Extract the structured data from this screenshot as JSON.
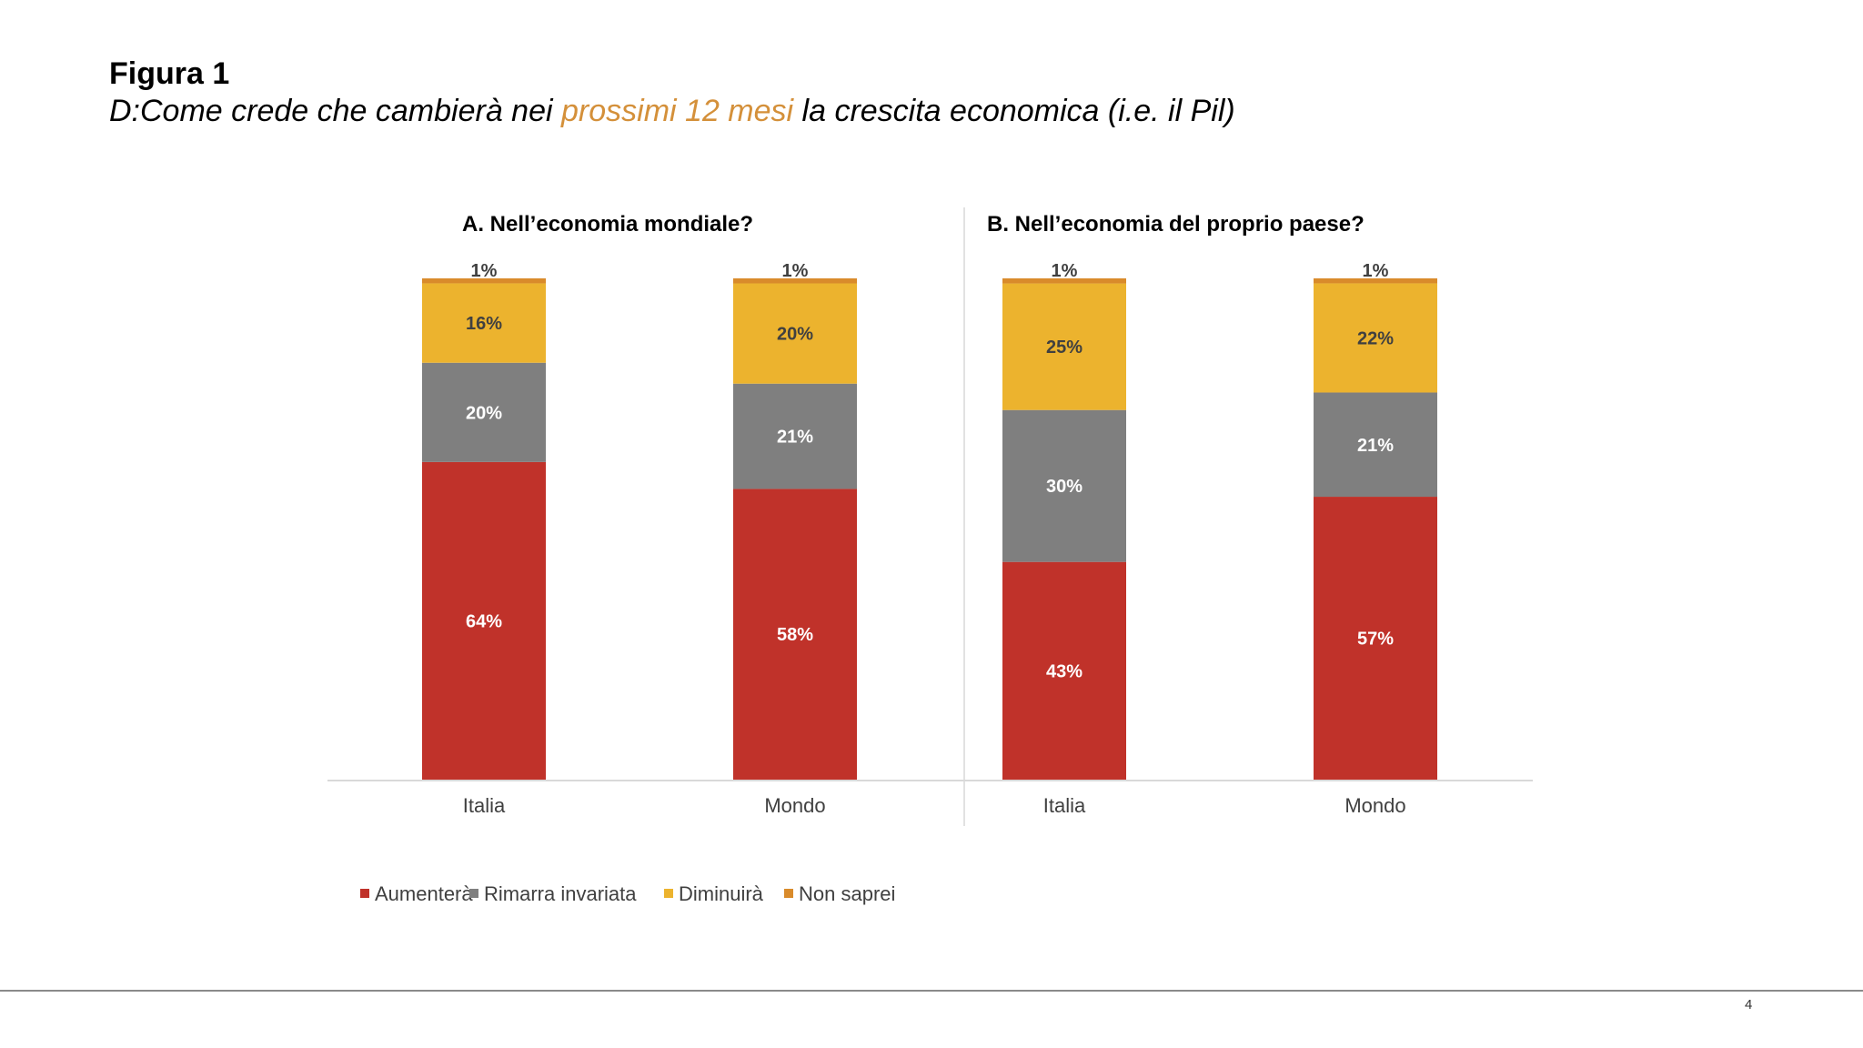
{
  "header": {
    "figure_label": "Figura 1",
    "question_prefix": "D:Come crede che cambierà nei ",
    "question_highlight": "prossimi 12 mesi",
    "question_suffix": " la crescita economica (i.e. il Pil)",
    "highlight_color": "#d4903a"
  },
  "chart_data": [
    {
      "type": "bar",
      "stacked": true,
      "title": "A. Nell’economia mondiale?",
      "categories": [
        "Italia",
        "Mondo"
      ],
      "series": [
        {
          "name": "Aumenterà",
          "color": "#c0322a",
          "values": [
            64,
            58
          ]
        },
        {
          "name": "Rimarra invariata",
          "color": "#7f7f7f",
          "values": [
            20,
            21
          ]
        },
        {
          "name": "Diminuirà",
          "color": "#ecb32e",
          "values": [
            16,
            20
          ]
        },
        {
          "name": "Non saprei",
          "color": "#d98b2b",
          "values": [
            1,
            1
          ]
        }
      ],
      "unit": "%",
      "legend": "bottom"
    },
    {
      "type": "bar",
      "stacked": true,
      "title": "B. Nell’economia del proprio paese?",
      "categories": [
        "Italia",
        "Mondo"
      ],
      "series": [
        {
          "name": "Aumenterà",
          "color": "#c0322a",
          "values": [
            43,
            57
          ]
        },
        {
          "name": "Rimarra invariata",
          "color": "#7f7f7f",
          "values": [
            30,
            21
          ]
        },
        {
          "name": "Diminuirà",
          "color": "#ecb32e",
          "values": [
            25,
            22
          ]
        },
        {
          "name": "Non saprei",
          "color": "#d98b2b",
          "values": [
            1,
            1
          ]
        }
      ],
      "unit": "%",
      "legend": "bottom"
    }
  ],
  "legend": [
    "Aumenterà",
    "Rimarra invariata",
    "Diminuirà",
    "Non saprei"
  ],
  "footer": {
    "page_number": "4"
  }
}
